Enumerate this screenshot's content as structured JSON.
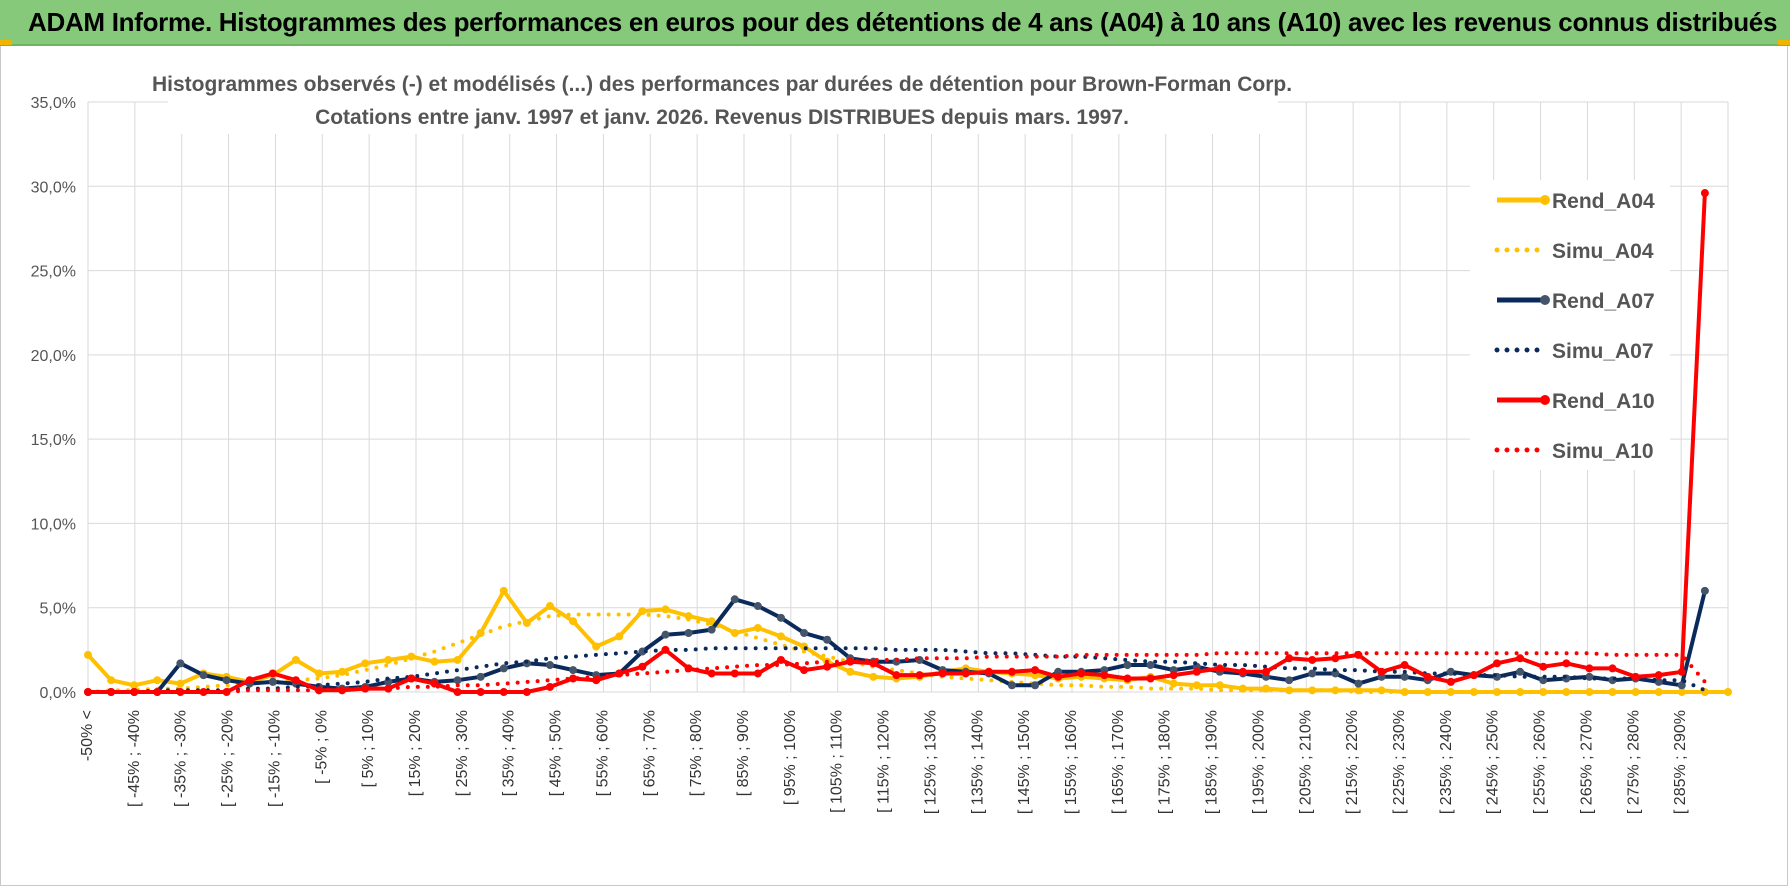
{
  "header": {
    "title": "ADAM Informe. Histogrammes des performances en euros pour des détentions de 4 ans (A04) à 10 ans (A10) avec les revenus connus distribués",
    "bg_color": "#86c97b"
  },
  "chart_data": {
    "type": "line",
    "title_lines": [
      "Histogrammes observés (-) et modélisés (...) des performances par durées de détention pour Brown-Forman Corp.",
      "Cotations entre janv. 1997 et janv. 2026. Revenus DISTRIBUES depuis mars. 1997."
    ],
    "ylim": [
      0,
      35
    ],
    "yticks": [
      "0,0%",
      "5,0%",
      "10,0%",
      "15,0%",
      "20,0%",
      "25,0%",
      "30,0%",
      "35,0%"
    ],
    "x_labels": [
      "-50% <",
      "[ -45% ; -40%",
      "[ -35% ; -30%",
      "[ -25% ; -20%",
      "[ -15% ; -10%",
      "[ -5% ; 0%",
      "[ 5% ; 10%",
      "[ 15% ; 20%",
      "[ 25% ; 30%",
      "[ 35% ; 40%",
      "[ 45% ; 50%",
      "[ 55% ; 60%",
      "[ 65% ; 70%",
      "[ 75% ; 80%",
      "[ 85% ; 90%",
      "[ 95% ; 100%",
      "[ 105% ; 110%",
      "[ 115% ; 120%",
      "[ 125% ; 130%",
      "[ 135% ; 140%",
      "[ 145% ; 150%",
      "[ 155% ; 160%",
      "[ 165% ; 170%",
      "[ 175% ; 180%",
      "[ 185% ; 190%",
      "[ 195% ; 200%",
      "[ 205% ; 210%",
      "[ 215% ; 220%",
      "[ 225% ; 230%",
      "[ 235% ; 240%",
      "[ 245% ; 250%",
      "[ 255% ; 260%",
      "[ 265% ; 270%",
      "[ 275% ; 280%",
      "[ 285% ; 290%"
    ],
    "series": [
      {
        "name": "Rend_A04",
        "color": "#ffc000",
        "style": "solid",
        "markers": true,
        "values": [
          2.2,
          0.7,
          0.4,
          0.7,
          0.5,
          1.1,
          0.9,
          0.6,
          1.0,
          1.9,
          1.1,
          1.2,
          1.7,
          1.9,
          2.1,
          1.8,
          1.9,
          3.5,
          6.0,
          4.1,
          5.1,
          4.2,
          2.7,
          3.3,
          4.8,
          4.9,
          4.5,
          4.2,
          3.5,
          3.8,
          3.3,
          2.7,
          1.8,
          1.2,
          0.9,
          0.8,
          0.9,
          1.2,
          1.4,
          1.2,
          1.1,
          1.0,
          0.8,
          0.9,
          0.8,
          0.7,
          0.9,
          0.5,
          0.4,
          0.4,
          0.2,
          0.2,
          0.1,
          0.1,
          0.1,
          0.1,
          0.1,
          0.0,
          0.0,
          0.0,
          0.0,
          0.0,
          0.0,
          0.0,
          0.0,
          0.0,
          0.0,
          0.0,
          0.0,
          0.0,
          0.0,
          0.0
        ]
      },
      {
        "name": "Simu_A04",
        "color": "#ffc000",
        "style": "dotted",
        "markers": false,
        "values": [
          0.0,
          0.1,
          0.1,
          0.2,
          0.2,
          0.3,
          0.4,
          0.5,
          0.6,
          0.7,
          0.8,
          1.0,
          1.3,
          1.6,
          2.0,
          2.4,
          2.9,
          3.4,
          3.9,
          4.2,
          4.5,
          4.6,
          4.6,
          4.6,
          4.6,
          4.5,
          4.3,
          4.0,
          3.6,
          3.2,
          2.8,
          2.4,
          2.1,
          1.8,
          1.5,
          1.3,
          1.1,
          0.9,
          0.8,
          0.7,
          0.6,
          0.5,
          0.4,
          0.4,
          0.3,
          0.3,
          0.2,
          0.2,
          0.2,
          0.1,
          0.1,
          0.1,
          0.1,
          0.1,
          0.1,
          0.0,
          0.0,
          0.0,
          0.0,
          0.0,
          0.0,
          0.0,
          0.0,
          0.0,
          0.0,
          0.0,
          0.0,
          0.0,
          0.0,
          0.0,
          0.0,
          0.0
        ]
      },
      {
        "name": "Rend_A07",
        "color": "#0b2a5c",
        "style": "solid",
        "markers": true,
        "values": [
          0.0,
          0.0,
          0.0,
          0.0,
          1.7,
          1.0,
          0.7,
          0.5,
          0.6,
          0.5,
          0.3,
          0.2,
          0.3,
          0.6,
          0.8,
          0.6,
          0.7,
          0.9,
          1.4,
          1.7,
          1.6,
          1.3,
          1.0,
          1.1,
          2.4,
          3.4,
          3.5,
          3.7,
          5.5,
          5.1,
          4.4,
          3.5,
          3.1,
          2.0,
          1.8,
          1.8,
          1.9,
          1.3,
          1.2,
          1.1,
          0.4,
          0.4,
          1.2,
          1.2,
          1.3,
          1.6,
          1.6,
          1.3,
          1.5,
          1.2,
          1.1,
          0.9,
          0.7,
          1.1,
          1.1,
          0.5,
          0.9,
          0.9,
          0.7,
          1.2,
          1.0,
          0.9,
          1.2,
          0.7,
          0.8,
          0.9,
          0.7,
          0.8,
          0.6,
          0.4,
          6.0
        ]
      },
      {
        "name": "Simu_A07",
        "color": "#0b2a5c",
        "style": "dotted",
        "markers": false,
        "values": [
          0.0,
          0.0,
          0.0,
          0.1,
          0.1,
          0.1,
          0.1,
          0.2,
          0.2,
          0.3,
          0.4,
          0.5,
          0.6,
          0.8,
          0.9,
          1.1,
          1.3,
          1.5,
          1.7,
          1.8,
          2.0,
          2.1,
          2.2,
          2.3,
          2.4,
          2.5,
          2.5,
          2.6,
          2.6,
          2.6,
          2.6,
          2.6,
          2.6,
          2.6,
          2.6,
          2.5,
          2.5,
          2.5,
          2.4,
          2.3,
          2.3,
          2.2,
          2.1,
          2.1,
          2.0,
          1.9,
          1.8,
          1.8,
          1.7,
          1.6,
          1.6,
          1.5,
          1.4,
          1.4,
          1.3,
          1.3,
          1.2,
          1.2,
          1.1,
          1.1,
          1.0,
          1.0,
          0.9,
          0.9,
          0.9,
          0.8,
          0.8,
          0.8,
          0.7,
          0.7,
          0.1
        ]
      },
      {
        "name": "Rend_A10",
        "color": "#ff0000",
        "style": "solid",
        "markers": true,
        "values": [
          0.0,
          0.0,
          0.0,
          0.0,
          0.0,
          0.0,
          0.0,
          0.7,
          1.1,
          0.7,
          0.1,
          0.1,
          0.2,
          0.2,
          0.8,
          0.5,
          0.0,
          0.0,
          0.0,
          0.0,
          0.3,
          0.8,
          0.7,
          1.1,
          1.5,
          2.5,
          1.4,
          1.1,
          1.1,
          1.1,
          1.9,
          1.3,
          1.5,
          1.8,
          1.7,
          1.0,
          1.0,
          1.1,
          1.1,
          1.2,
          1.2,
          1.3,
          0.9,
          1.1,
          1.0,
          0.8,
          0.8,
          1.0,
          1.2,
          1.4,
          1.2,
          1.2,
          2.0,
          1.9,
          2.0,
          2.2,
          1.2,
          1.6,
          0.9,
          0.6,
          1.0,
          1.7,
          2.0,
          1.5,
          1.7,
          1.4,
          1.4,
          0.9,
          1.0,
          1.2,
          29.6
        ]
      },
      {
        "name": "Simu_A10",
        "color": "#ff0000",
        "style": "dotted",
        "markers": false,
        "values": [
          0.0,
          0.0,
          0.0,
          0.0,
          0.0,
          0.0,
          0.0,
          0.1,
          0.1,
          0.1,
          0.1,
          0.2,
          0.2,
          0.2,
          0.3,
          0.3,
          0.4,
          0.4,
          0.5,
          0.6,
          0.7,
          0.8,
          0.9,
          1.0,
          1.1,
          1.2,
          1.3,
          1.4,
          1.5,
          1.6,
          1.6,
          1.7,
          1.8,
          1.8,
          1.9,
          1.9,
          2.0,
          2.0,
          2.0,
          2.1,
          2.1,
          2.1,
          2.1,
          2.2,
          2.2,
          2.2,
          2.2,
          2.2,
          2.2,
          2.3,
          2.3,
          2.3,
          2.3,
          2.3,
          2.3,
          2.3,
          2.3,
          2.3,
          2.3,
          2.3,
          2.3,
          2.3,
          2.3,
          2.3,
          2.3,
          2.3,
          2.2,
          2.2,
          2.2,
          2.2,
          0.6
        ]
      }
    ]
  }
}
